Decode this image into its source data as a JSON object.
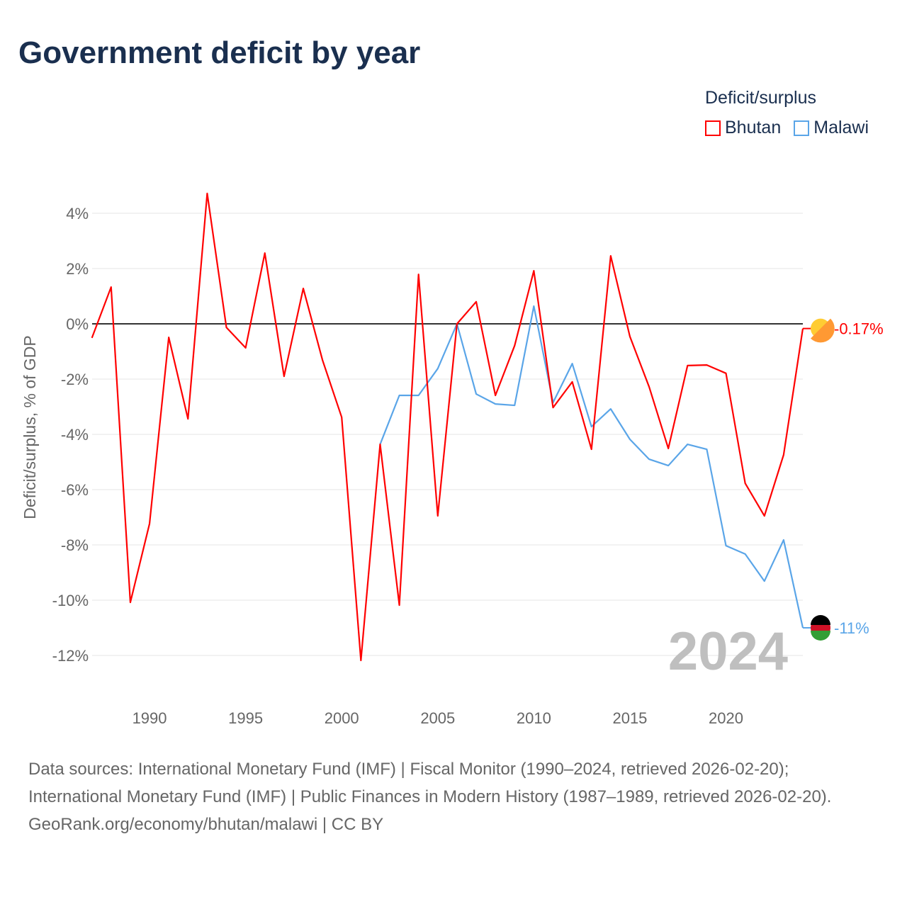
{
  "title": "Government deficit by year",
  "legend": {
    "title": "Deficit/surplus",
    "items": [
      {
        "name": "Bhutan",
        "color": "#ff0000"
      },
      {
        "name": "Malawi",
        "color": "#5aa5e8"
      }
    ]
  },
  "year_watermark": "2024",
  "end_labels": {
    "Bhutan": "-0.17%",
    "Malawi": "-11%"
  },
  "source": {
    "line1": "Data sources: International Monetary Fund (IMF) | Fiscal Monitor (1990–2024, retrieved 2026-02-20); International Monetary Fund (IMF) | Public Finances in Modern History (1987–1989, retrieved 2026-02-20).",
    "line2": "GeoRank.org/economy/bhutan/malawi | CC BY"
  },
  "chart_data": {
    "type": "line",
    "title": "Government deficit by year",
    "xlabel": "",
    "ylabel": "Deficit/surplus, % of GDP",
    "xlim": [
      1987,
      2024
    ],
    "ylim": [
      -13.5,
      5.5
    ],
    "x_ticks": [
      1990,
      1995,
      2000,
      2005,
      2010,
      2015,
      2020
    ],
    "y_ticks": [
      4,
      2,
      0,
      -2,
      -4,
      -6,
      -8,
      -10,
      -12
    ],
    "y_tick_labels": [
      "4%",
      "2%",
      "0%",
      "-2%",
      "-4%",
      "-6%",
      "-8%",
      "-10%",
      "-12%"
    ],
    "grid": true,
    "legend_position": "top-right",
    "series": [
      {
        "name": "Bhutan",
        "color": "#ff0000",
        "start": 1987,
        "values": [
          -0.51,
          1.33,
          -10.08,
          -7.23,
          -0.49,
          -3.44,
          4.72,
          -0.13,
          -0.87,
          2.56,
          -1.9,
          1.28,
          -1.31,
          -3.38,
          -12.18,
          -4.36,
          -10.18,
          1.79,
          -6.95,
          0.0,
          0.8,
          -2.59,
          -0.79,
          1.92,
          -3.03,
          -2.1,
          -4.54,
          2.46,
          -0.46,
          -2.28,
          -4.51,
          -1.51,
          -1.49,
          -1.79,
          -5.77,
          -6.95,
          -4.74,
          -0.17
        ]
      },
      {
        "name": "Malawi",
        "color": "#5aa5e8",
        "start": 2002,
        "values": [
          -4.36,
          -2.59,
          -2.59,
          -1.62,
          0.0,
          -2.54,
          -2.9,
          -2.95,
          0.64,
          -2.85,
          -1.44,
          -3.72,
          -3.08,
          -4.18,
          -4.9,
          -5.13,
          -4.36,
          -4.54,
          -8.03,
          -8.33,
          -9.31,
          -7.82,
          -11.0
        ]
      }
    ]
  }
}
